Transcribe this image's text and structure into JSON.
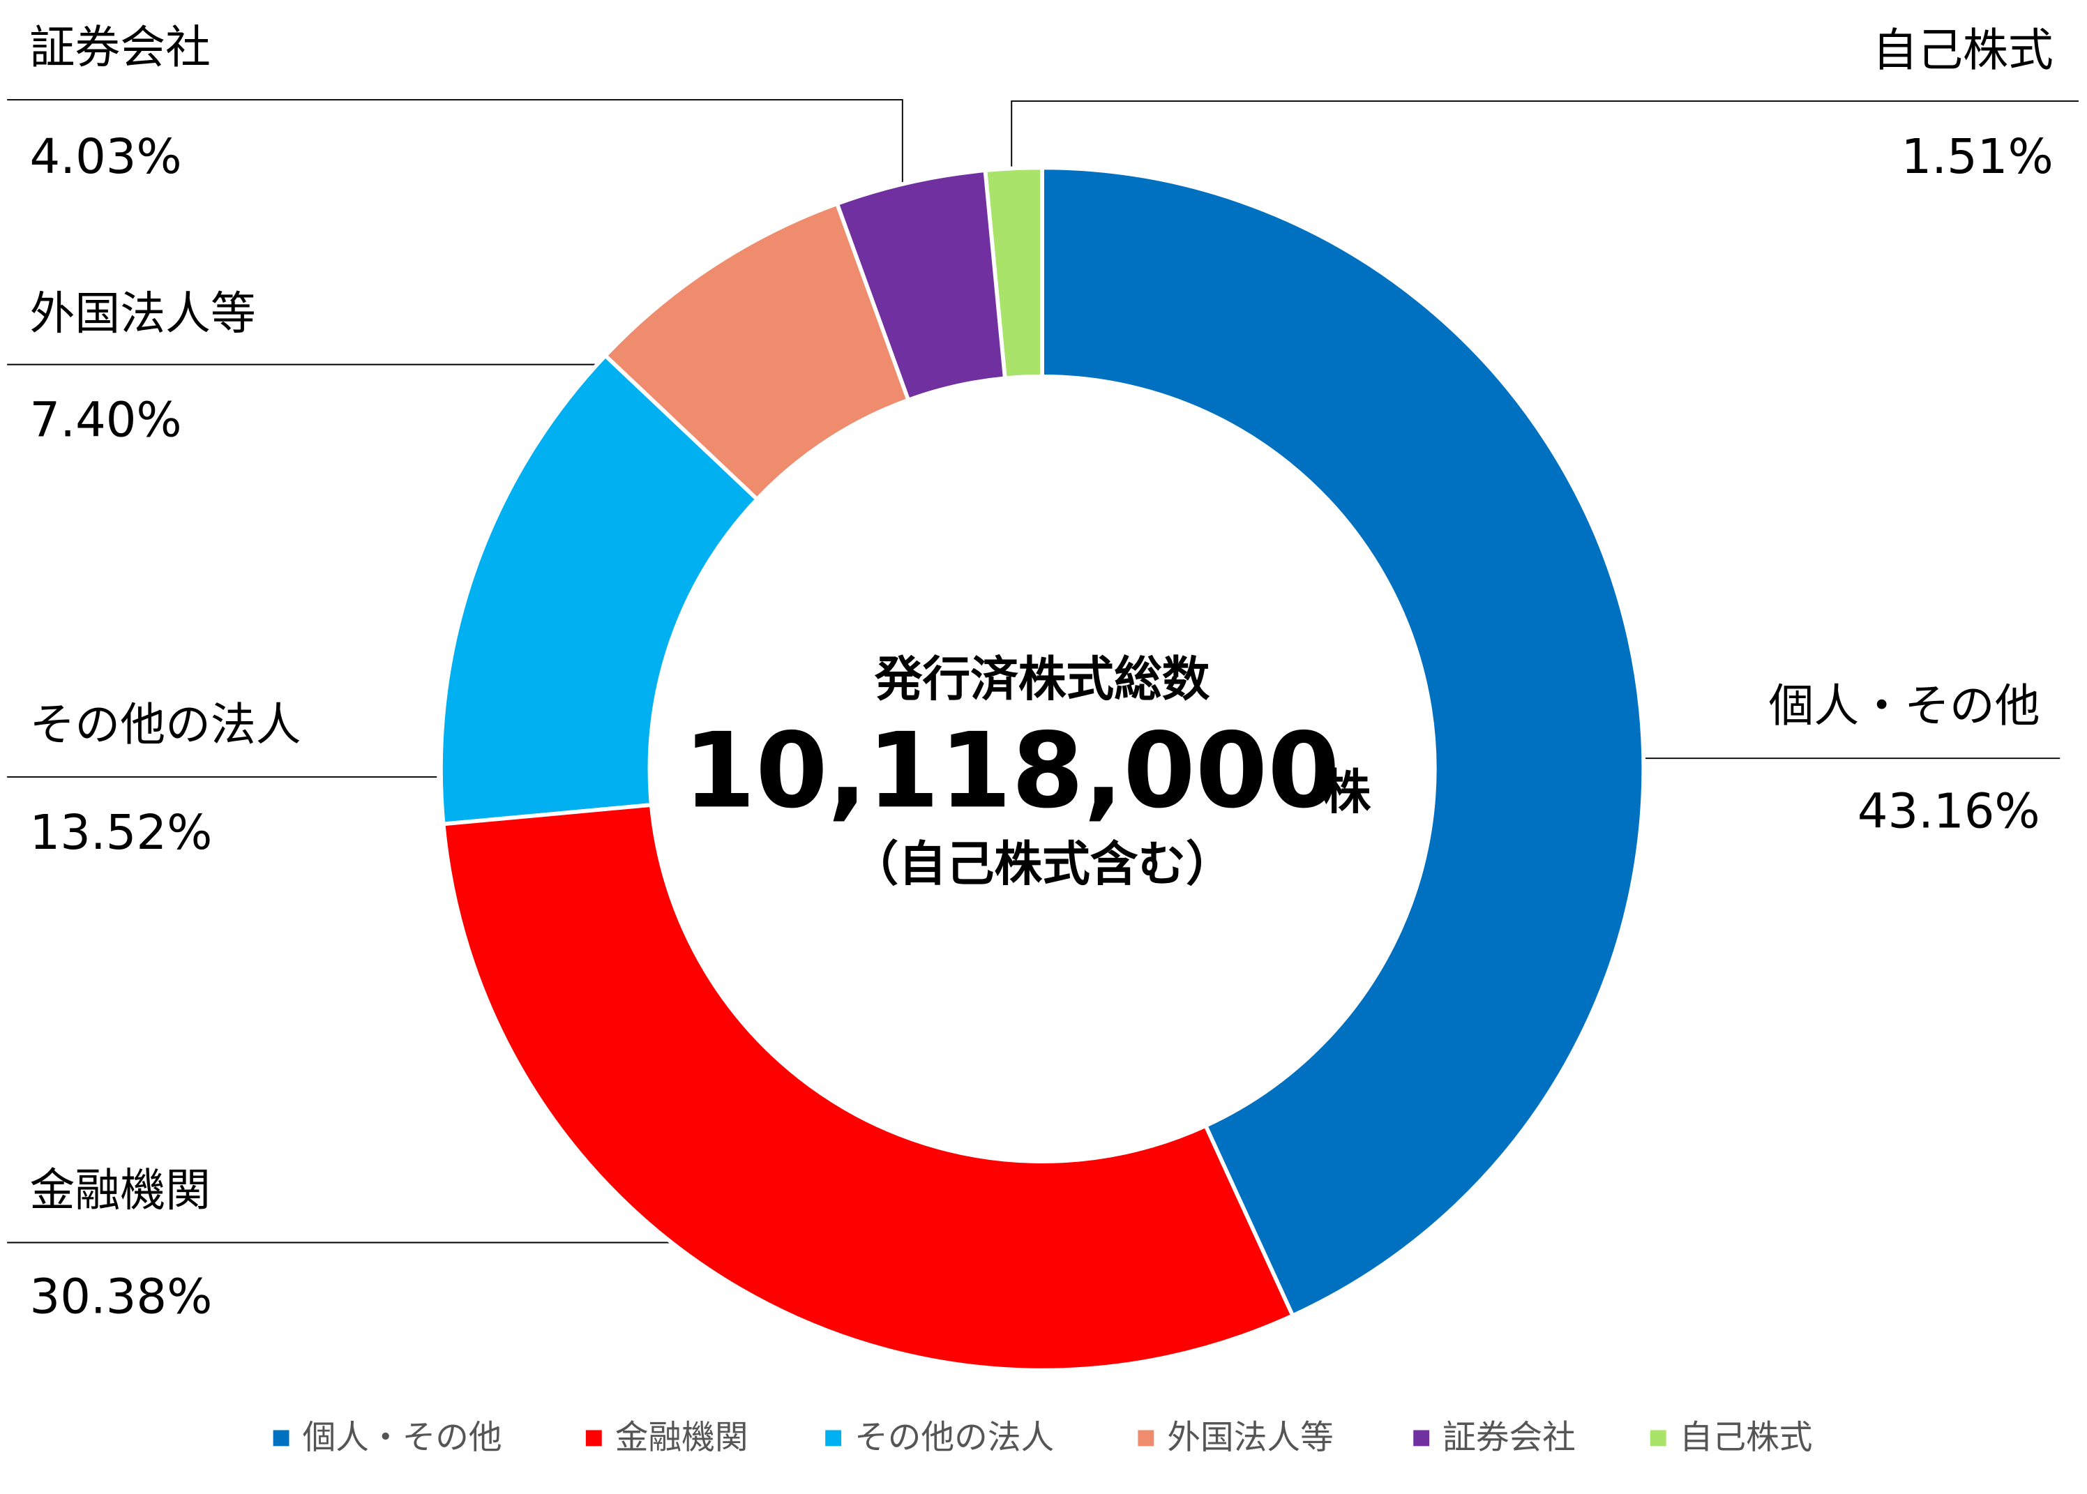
{
  "chart_data": {
    "type": "donut",
    "categories": [
      "個人・その他",
      "金融機関",
      "その他の法人",
      "外国法人等",
      "証券会社",
      "自己株式"
    ],
    "values": [
      43.16,
      30.38,
      13.52,
      7.4,
      4.03,
      1.51
    ],
    "value_labels": [
      "43.16%",
      "30.38%",
      "13.52%",
      "7.40%",
      "4.03%",
      "1.51%"
    ],
    "colors": [
      "#0070c0",
      "#ff0000",
      "#00b0f0",
      "#ef8c6d",
      "#7030a0",
      "#a9e36a"
    ],
    "center_title": "発行済株式総数",
    "center_total": "10,118,000",
    "center_unit": "株",
    "center_note": "（自己株式含む）",
    "legend": true
  }
}
